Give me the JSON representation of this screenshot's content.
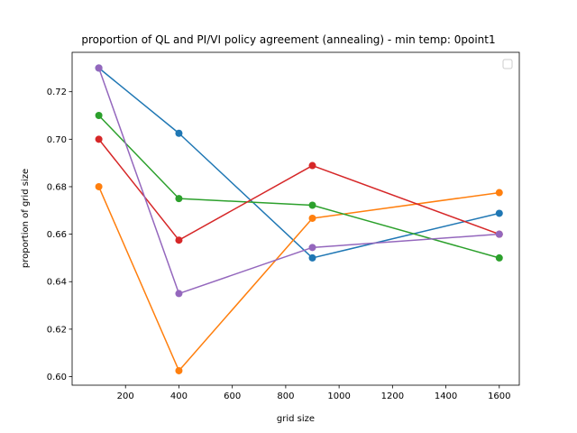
{
  "chart_data": {
    "type": "line",
    "title": "proportion of QL and PI/VI policy agreement (annealing) - min temp: 0point1",
    "xlabel": "grid size",
    "ylabel": "proportion of grid size",
    "x": [
      100,
      400,
      900,
      1600
    ],
    "xlim": [
      0,
      1675
    ],
    "ylim": [
      0.5964,
      0.7366
    ],
    "xticks": [
      200,
      400,
      600,
      800,
      1000,
      1200,
      1400,
      1600
    ],
    "xtick_labels": [
      "200",
      "400",
      "600",
      "800",
      "1000",
      "1200",
      "1400",
      "1600"
    ],
    "yticks": [
      0.6,
      0.62,
      0.64,
      0.66,
      0.68,
      0.7,
      0.72
    ],
    "ytick_labels": [
      "0.60",
      "0.62",
      "0.64",
      "0.66",
      "0.68",
      "0.70",
      "0.72"
    ],
    "grid": false,
    "legend": "top-right (empty)",
    "series": [
      {
        "color": "#1f77b4",
        "values": [
          0.73,
          0.7025,
          0.65,
          0.6688
        ]
      },
      {
        "color": "#ff7f0e",
        "values": [
          0.68,
          0.6025,
          0.6667,
          0.6775
        ]
      },
      {
        "color": "#2ca02c",
        "values": [
          0.71,
          0.675,
          0.6722,
          0.65
        ]
      },
      {
        "color": "#d62728",
        "values": [
          0.7,
          0.6575,
          0.6889,
          0.66
        ]
      },
      {
        "color": "#9467bd",
        "values": [
          0.73,
          0.635,
          0.6544,
          0.66
        ]
      }
    ]
  }
}
